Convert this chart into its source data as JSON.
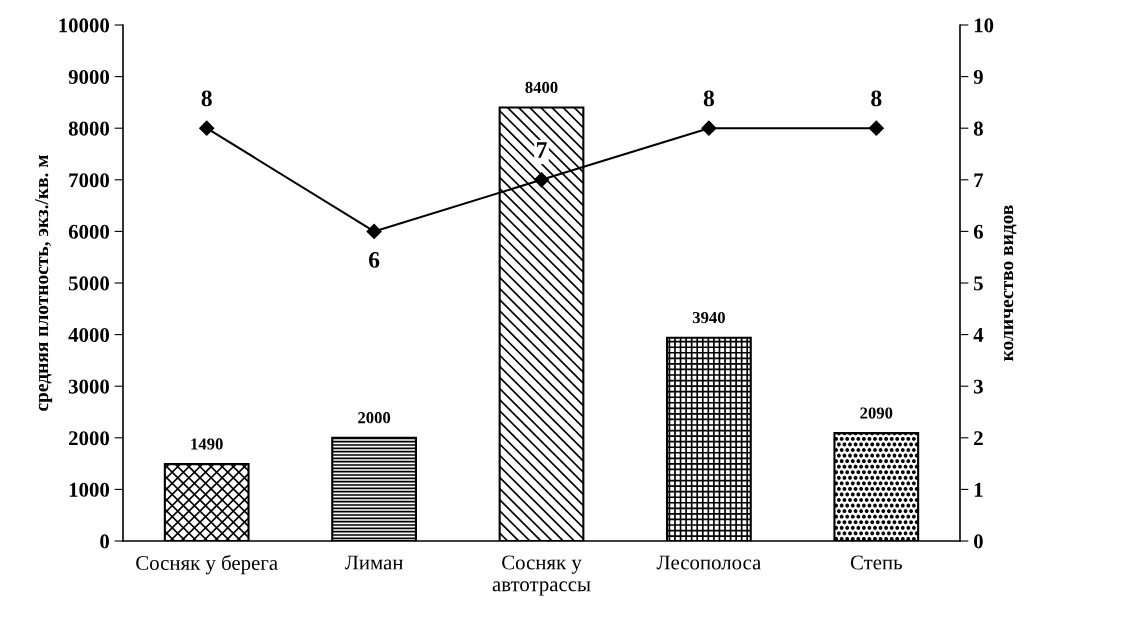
{
  "chart_data": {
    "type": "bar",
    "categories": [
      "Сосняк у берега",
      "Лиман",
      "Сосняк у\nавтотрассы",
      "Лесополоса",
      "Степь"
    ],
    "ylabel": "средняя плотность, экз./кв. м",
    "y2label": "количество видов",
    "ylim": [
      0,
      10000
    ],
    "yticks": [
      0,
      1000,
      2000,
      3000,
      4000,
      5000,
      6000,
      7000,
      8000,
      9000,
      10000
    ],
    "y2lim": [
      0,
      10
    ],
    "y2ticks": [
      0,
      1,
      2,
      3,
      4,
      5,
      6,
      7,
      8,
      9,
      10
    ],
    "data_labels": true,
    "grid": false,
    "legend": false,
    "series": [
      {
        "color": "#000000",
        "values": [
          1490,
          2000,
          8400,
          3940,
          2090
        ]
      },
      {
        "type": "line",
        "axis": "y2",
        "color": "#000000",
        "marker": "diamond",
        "line_style": "solid",
        "values": [
          8,
          6,
          7,
          8,
          8
        ]
      }
    ]
  }
}
